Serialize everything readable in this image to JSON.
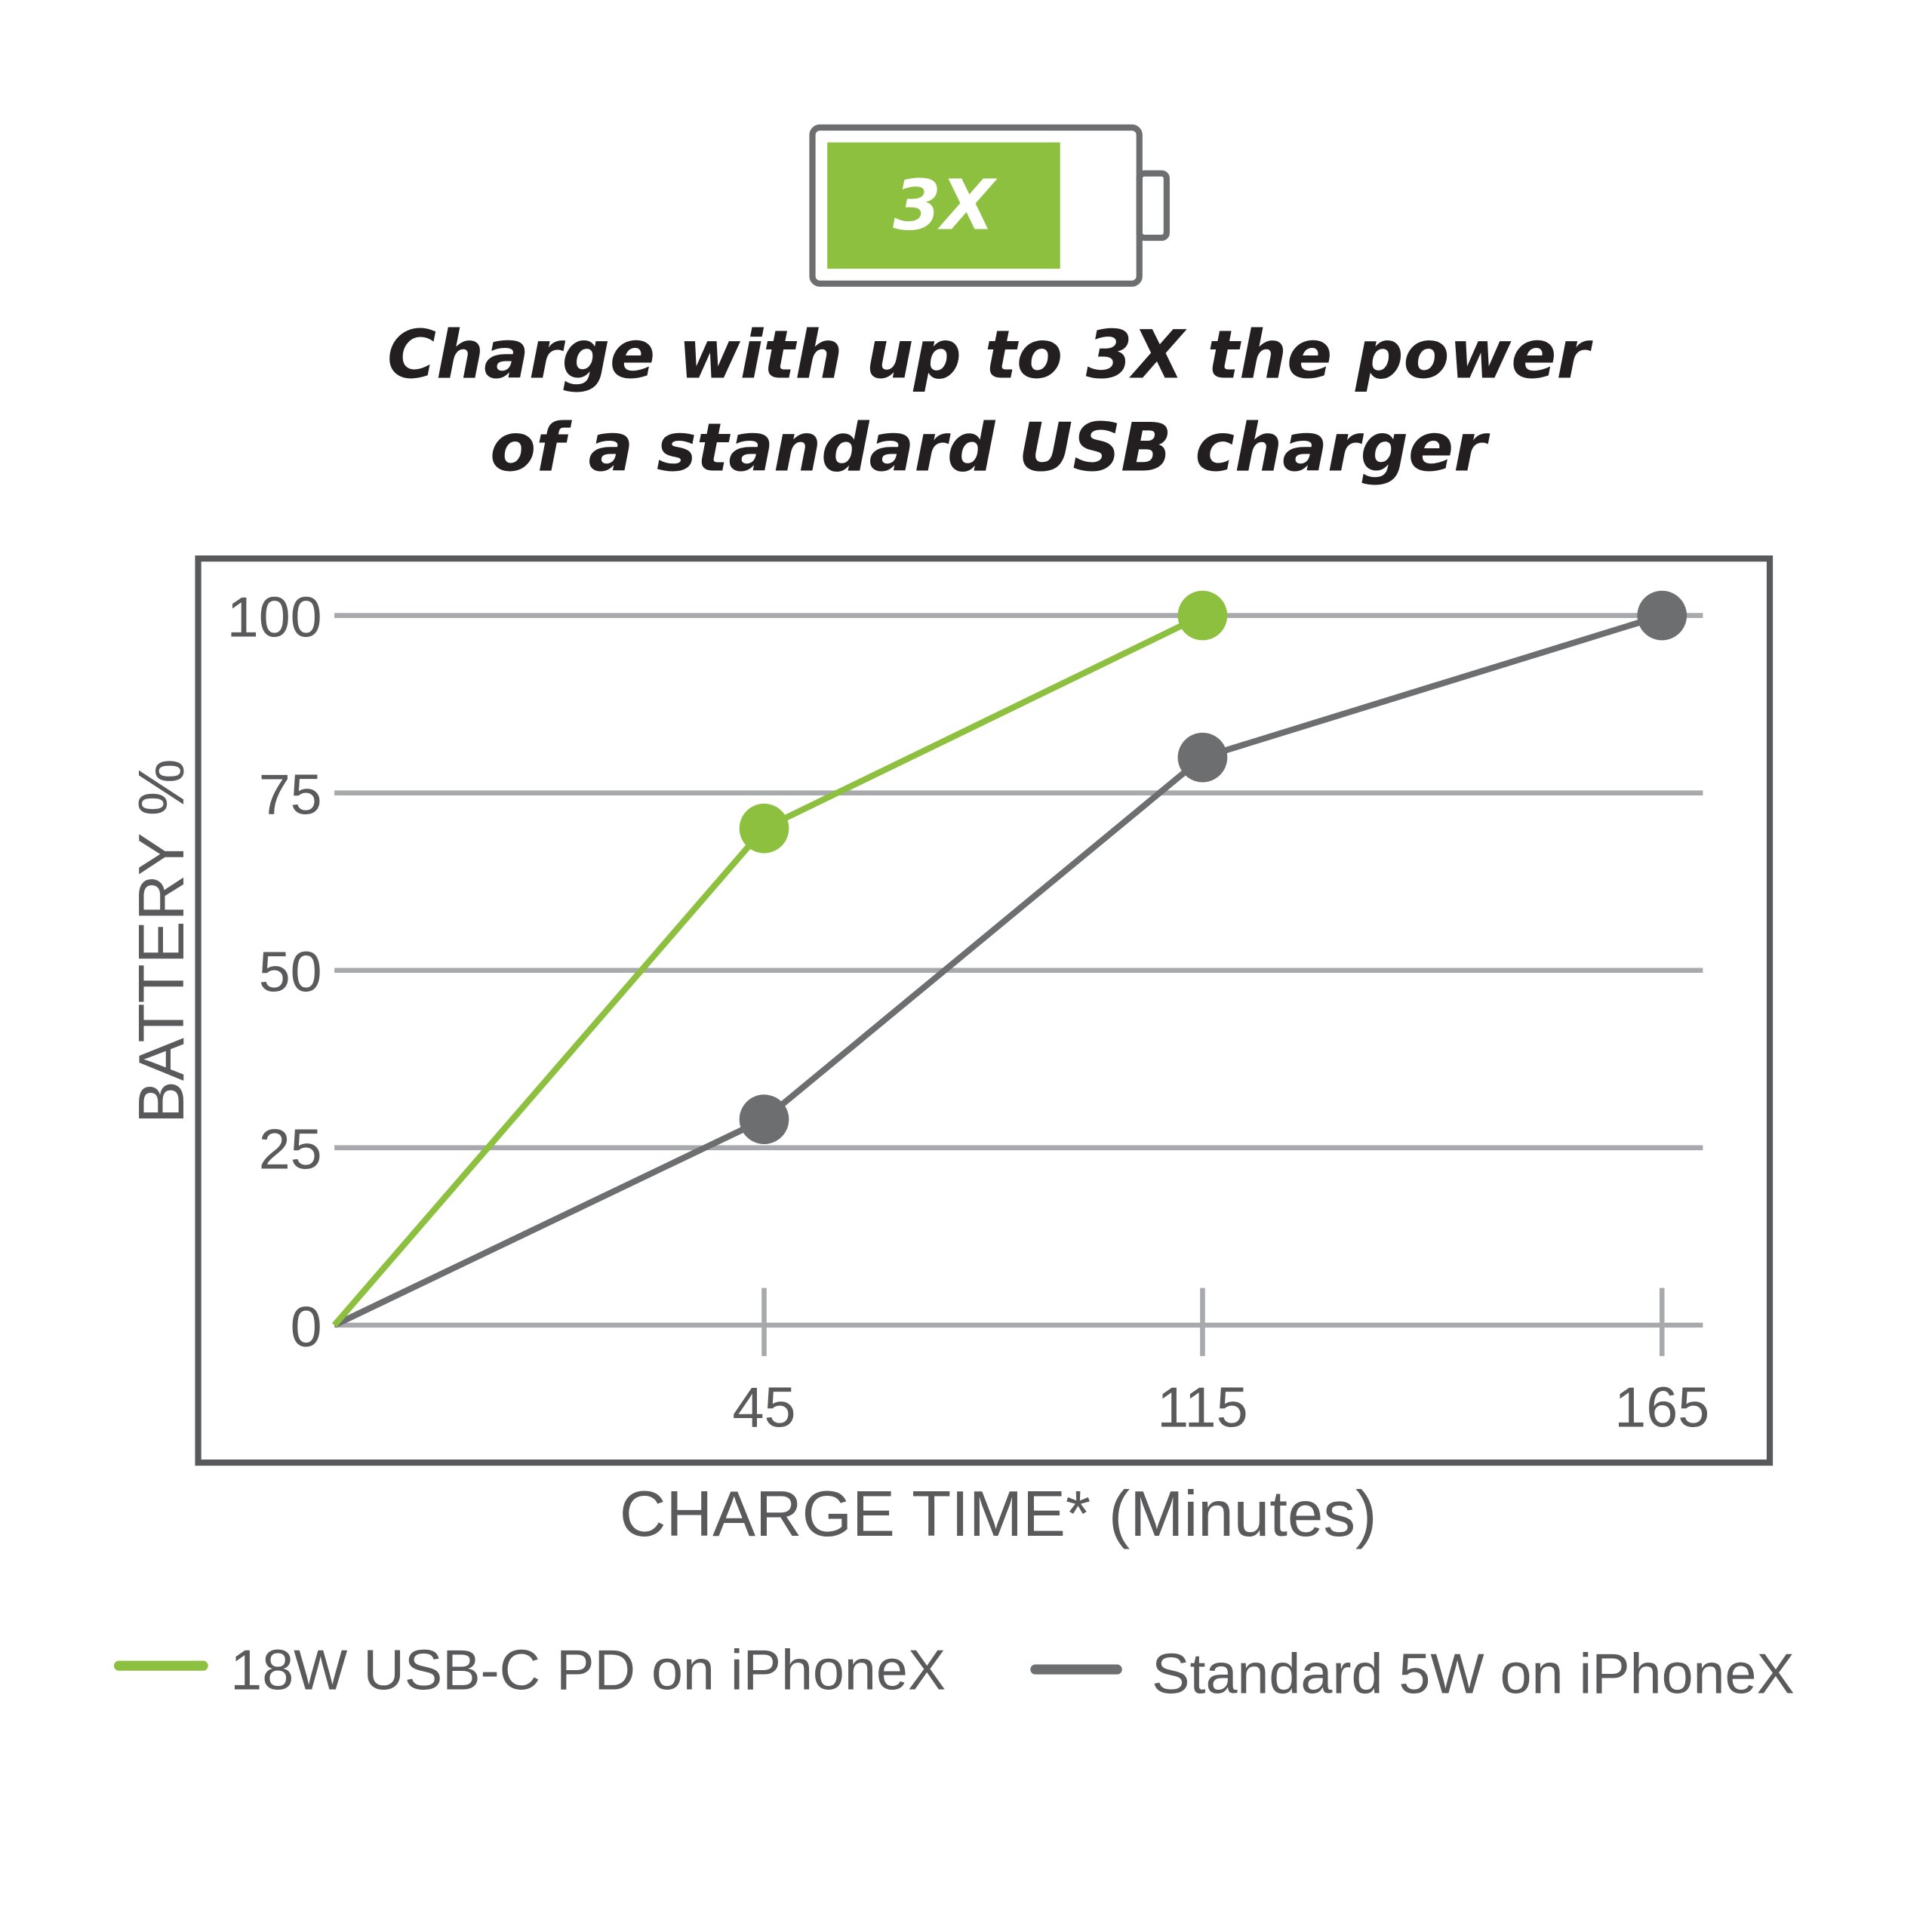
{
  "badge": {
    "label": "3X",
    "icon": "battery-icon"
  },
  "title_lines": [
    "Charge with up to 3X the power",
    "of a standard USB charger"
  ],
  "colors": {
    "green": "#8dc03f",
    "gray": "#6d6e70",
    "grid": "#a7a9ac",
    "frame": "#58595b"
  },
  "chart_data": {
    "type": "line",
    "title": "Charge with up to 3X the power of a standard USB charger",
    "xlabel": "CHARGE TIME* (Minutes)",
    "ylabel": "BATTERY %",
    "x": [
      0,
      45,
      115,
      165
    ],
    "x_tick_labels": [
      "45",
      "115",
      "165"
    ],
    "y_ticks": [
      0,
      25,
      50,
      75,
      100
    ],
    "y_tick_labels": [
      "0",
      "25",
      "50",
      "75",
      "100"
    ],
    "ylim": [
      0,
      100
    ],
    "grid": true,
    "legend_position": "bottom",
    "series": [
      {
        "name": "18W USB-C PD on iPhoneX",
        "color": "#8dc03f",
        "x": [
          0,
          45,
          115
        ],
        "values": [
          0,
          70,
          100
        ]
      },
      {
        "name": "Standard 5W on iPhoneX",
        "color": "#6d6e70",
        "x": [
          0,
          45,
          115,
          165
        ],
        "values": [
          0,
          29,
          80,
          100
        ]
      }
    ]
  }
}
